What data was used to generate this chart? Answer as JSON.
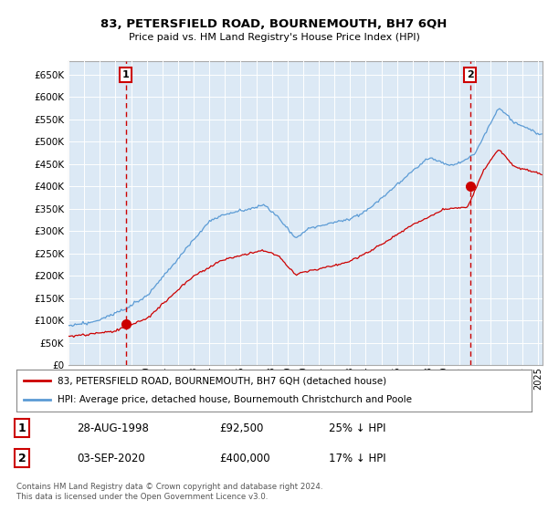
{
  "title": "83, PETERSFIELD ROAD, BOURNEMOUTH, BH7 6QH",
  "subtitle": "Price paid vs. HM Land Registry's House Price Index (HPI)",
  "legend_line1": "83, PETERSFIELD ROAD, BOURNEMOUTH, BH7 6QH (detached house)",
  "legend_line2": "HPI: Average price, detached house, Bournemouth Christchurch and Poole",
  "sale1_date": "28-AUG-1998",
  "sale1_price": "£92,500",
  "sale1_hpi": "25% ↓ HPI",
  "sale2_date": "03-SEP-2020",
  "sale2_price": "£400,000",
  "sale2_hpi": "17% ↓ HPI",
  "footer": "Contains HM Land Registry data © Crown copyright and database right 2024.\nThis data is licensed under the Open Government Licence v3.0.",
  "hpi_color": "#5b9bd5",
  "price_color": "#cc0000",
  "marker_color": "#cc0000",
  "grid_color": "#cccccc",
  "bg_fill_color": "#dce9f5",
  "background_color": "#ffffff",
  "ylim": [
    0,
    680000
  ],
  "yticks": [
    0,
    50000,
    100000,
    150000,
    200000,
    250000,
    300000,
    350000,
    400000,
    450000,
    500000,
    550000,
    600000,
    650000
  ],
  "sale1_year": 1998.65,
  "sale1_value": 92500,
  "sale2_year": 2020.67,
  "sale2_value": 400000,
  "xmin": 1995.0,
  "xmax": 2025.3
}
